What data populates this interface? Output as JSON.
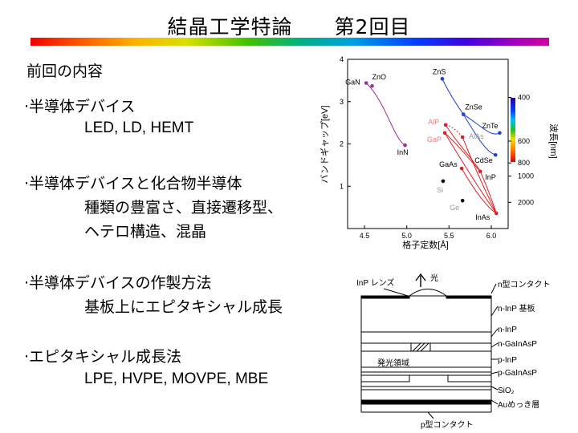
{
  "slide": {
    "title": "結晶工学特論　　第2回目",
    "section_heading": "前回の内容",
    "bullets": [
      {
        "head": "·半導体デバイス",
        "lines": [
          "LED, LD, HEMT"
        ]
      },
      {
        "head": "·半導体デバイスと化合物半導体",
        "lines": [
          "種類の豊富さ、直接遷移型、",
          "ヘテロ構造、混晶"
        ]
      },
      {
        "head": "·半導体デバイスの作製方法",
        "lines": [
          "基板上にエピタキシャル成長"
        ]
      },
      {
        "head": "·エピタキシャル成長法",
        "lines": [
          "LPE, HVPE, MOVPE, MBE"
        ]
      }
    ]
  },
  "chart_data": {
    "type": "scatter",
    "xlabel": "格子定数[Å]",
    "ylabel": "バンドギャップ[eV]",
    "xlim": [
      4.3,
      6.2
    ],
    "ylim": [
      0,
      4
    ],
    "x_ticks": [
      "4.5",
      "5.0",
      "5.5",
      "6.0"
    ],
    "y_ticks": [
      "1",
      "2",
      "3",
      "4"
    ],
    "right_axis_label": "波長[nm]",
    "right_ticks": [
      "400",
      "600",
      "800",
      "1000",
      "2000"
    ],
    "points": [
      {
        "label": "GaN",
        "x": 4.52,
        "y": 3.44,
        "color": "#a03090"
      },
      {
        "label": "ZnO",
        "x": 4.59,
        "y": 3.37,
        "color": "#a03090"
      },
      {
        "label": "InN",
        "x": 4.98,
        "y": 1.97,
        "color": "#a03090"
      },
      {
        "label": "ZnS",
        "x": 5.42,
        "y": 3.54,
        "color": "#2040d0"
      },
      {
        "label": "ZnSe",
        "x": 5.67,
        "y": 2.7,
        "color": "#2040d0"
      },
      {
        "label": "ZnTe",
        "x": 6.1,
        "y": 2.26,
        "color": "#2040d0"
      },
      {
        "label": "CdSe",
        "x": 6.05,
        "y": 1.74,
        "color": "#2040d0"
      },
      {
        "label": "AlP",
        "x": 5.46,
        "y": 2.45,
        "color": "#e02020"
      },
      {
        "label": "GaP",
        "x": 5.45,
        "y": 2.26,
        "color": "#e02020"
      },
      {
        "label": "AlAs",
        "x": 5.66,
        "y": 2.16,
        "color": "#e02020"
      },
      {
        "label": "GaAs",
        "x": 5.65,
        "y": 1.42,
        "color": "#e02020"
      },
      {
        "label": "InP",
        "x": 5.87,
        "y": 1.35,
        "color": "#e02020"
      },
      {
        "label": "InAs",
        "x": 6.06,
        "y": 0.36,
        "color": "#e02020"
      },
      {
        "label": "Si",
        "x": 5.43,
        "y": 1.12,
        "color": "#000000"
      },
      {
        "label": "Ge",
        "x": 5.66,
        "y": 0.66,
        "color": "#000000"
      }
    ]
  },
  "device": {
    "labels": {
      "inp_lens": "InP レンズ",
      "light": "光",
      "n_contact": "n型コンタクト",
      "n_inp_sub": "n-InP 基板",
      "n_inp": "n-InP",
      "n_gainasp": "n-GaInAsP",
      "p_inp": "p-InP",
      "p_gainasp": "p-GaInAsP",
      "sio2": "SiO₂",
      "au": "Auめっき層",
      "emit": "発光領域",
      "p_contact": "p型コンタクト"
    }
  }
}
